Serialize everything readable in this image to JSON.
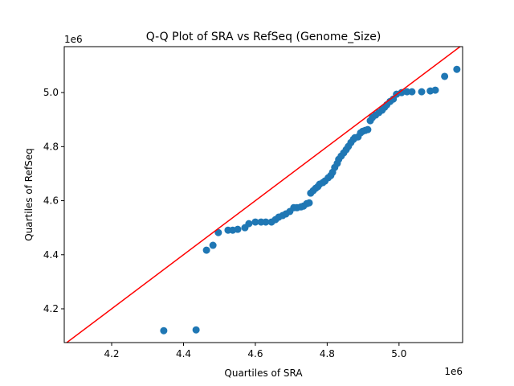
{
  "chart_data": {
    "type": "scatter",
    "title": "Q-Q Plot of SRA vs RefSeq (Genome_Size)",
    "xlabel": "Quartiles of SRA",
    "ylabel": "Quartiles of RefSeq",
    "x_offset_label": "1e6",
    "y_offset_label": "1e6",
    "xlim": [
      4.068,
      5.177
    ],
    "ylim": [
      4.075,
      5.17
    ],
    "xticks": [
      4.2,
      4.4,
      4.6,
      4.8,
      5.0
    ],
    "yticks": [
      4.2,
      4.4,
      4.6,
      4.8,
      5.0
    ],
    "xtick_labels": [
      "4.2",
      "4.4",
      "4.6",
      "4.8",
      "5.0"
    ],
    "ytick_labels": [
      "4.2",
      "4.4",
      "4.6",
      "4.8",
      "5.0"
    ],
    "grid": false,
    "point_color": "#1f77b4",
    "reference_line": {
      "type": "y=x",
      "color": "#ff0000"
    },
    "points": [
      [
        4.345,
        4.119
      ],
      [
        4.435,
        4.122
      ],
      [
        4.464,
        4.417
      ],
      [
        4.482,
        4.435
      ],
      [
        4.497,
        4.482
      ],
      [
        4.524,
        4.491
      ],
      [
        4.537,
        4.491
      ],
      [
        4.551,
        4.494
      ],
      [
        4.571,
        4.5
      ],
      [
        4.582,
        4.515
      ],
      [
        4.6,
        4.521
      ],
      [
        4.616,
        4.521
      ],
      [
        4.629,
        4.521
      ],
      [
        4.645,
        4.521
      ],
      [
        4.656,
        4.53
      ],
      [
        4.665,
        4.539
      ],
      [
        4.676,
        4.545
      ],
      [
        4.685,
        4.551
      ],
      [
        4.696,
        4.56
      ],
      [
        4.707,
        4.574
      ],
      [
        4.716,
        4.574
      ],
      [
        4.727,
        4.577
      ],
      [
        4.734,
        4.58
      ],
      [
        4.743,
        4.589
      ],
      [
        4.75,
        4.592
      ],
      [
        4.754,
        4.628
      ],
      [
        4.761,
        4.637
      ],
      [
        4.768,
        4.646
      ],
      [
        4.774,
        4.652
      ],
      [
        4.779,
        4.661
      ],
      [
        4.788,
        4.667
      ],
      [
        4.794,
        4.673
      ],
      [
        4.803,
        4.685
      ],
      [
        4.81,
        4.693
      ],
      [
        4.815,
        4.705
      ],
      [
        4.821,
        4.723
      ],
      [
        4.828,
        4.738
      ],
      [
        4.832,
        4.753
      ],
      [
        4.839,
        4.765
      ],
      [
        4.846,
        4.777
      ],
      [
        4.853,
        4.789
      ],
      [
        4.859,
        4.801
      ],
      [
        4.866,
        4.815
      ],
      [
        4.873,
        4.827
      ],
      [
        4.877,
        4.833
      ],
      [
        4.886,
        4.836
      ],
      [
        4.893,
        4.851
      ],
      [
        4.899,
        4.857
      ],
      [
        4.906,
        4.86
      ],
      [
        4.913,
        4.863
      ],
      [
        4.92,
        4.896
      ],
      [
        4.926,
        4.908
      ],
      [
        4.935,
        4.917
      ],
      [
        4.944,
        4.926
      ],
      [
        4.953,
        4.935
      ],
      [
        4.96,
        4.946
      ],
      [
        4.966,
        4.955
      ],
      [
        4.975,
        4.967
      ],
      [
        4.984,
        4.976
      ],
      [
        4.993,
        4.994
      ],
      [
        5.007,
        5.0
      ],
      [
        5.022,
        5.003
      ],
      [
        5.036,
        5.003
      ],
      [
        5.063,
        5.003
      ],
      [
        5.087,
        5.006
      ],
      [
        5.101,
        5.009
      ],
      [
        5.127,
        5.06
      ],
      [
        5.161,
        5.086
      ]
    ]
  }
}
